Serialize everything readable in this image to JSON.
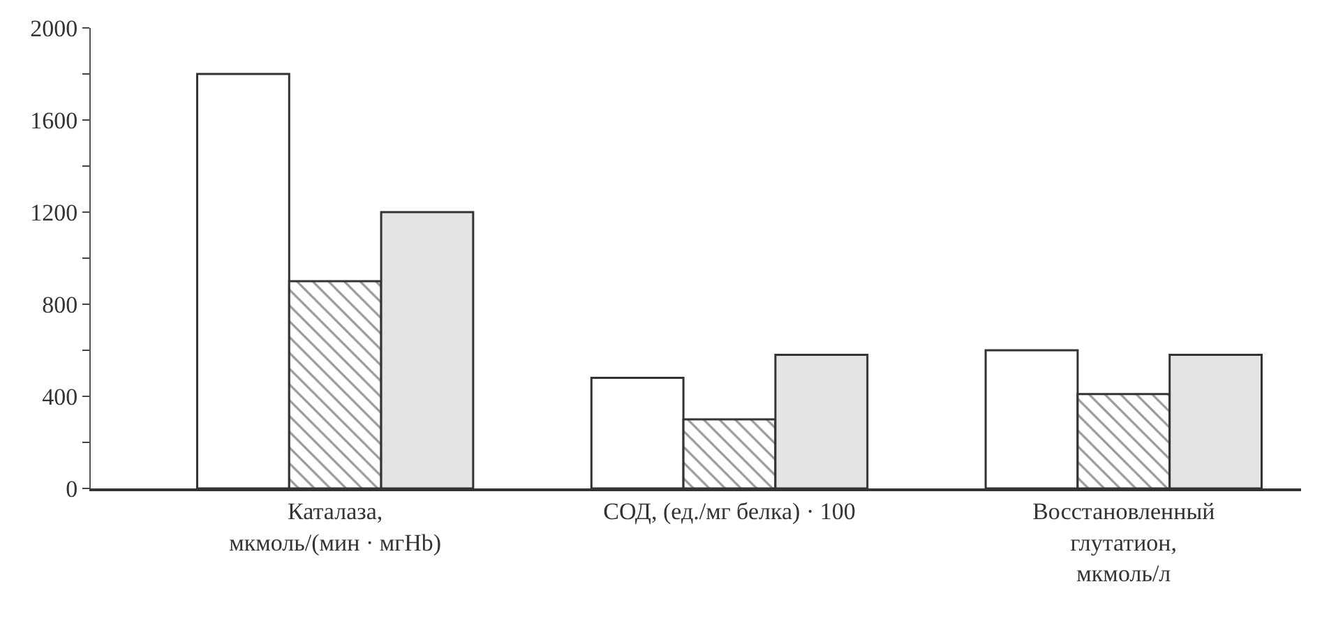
{
  "chart_data": {
    "type": "bar",
    "categories": [
      "Каталаза,\nмкмоль/(мин · мгHb)",
      "СОД, (ед./мг белка) · 100",
      "Восстановленный\nглутатион,\nмкмоль/л"
    ],
    "series": [
      {
        "color": "#ffffff",
        "values": [
          1800,
          480,
          600
        ]
      },
      {
        "color": "#333333",
        "values": [
          900,
          300,
          410
        ]
      },
      {
        "color": "#e4e4e4",
        "values": [
          1200,
          580,
          580
        ]
      }
    ],
    "ylim": [
      0,
      2000
    ],
    "yticks": [
      0,
      {
        "value": 200,
        "label": null
      },
      400,
      {
        "value": 600,
        "label": null
      },
      800,
      {
        "value": 1000,
        "label": null
      },
      1200,
      {
        "value": 1400,
        "label": null
      },
      1600,
      {
        "value": 1800,
        "label": null
      },
      2000
    ],
    "tick_labels": true
  }
}
